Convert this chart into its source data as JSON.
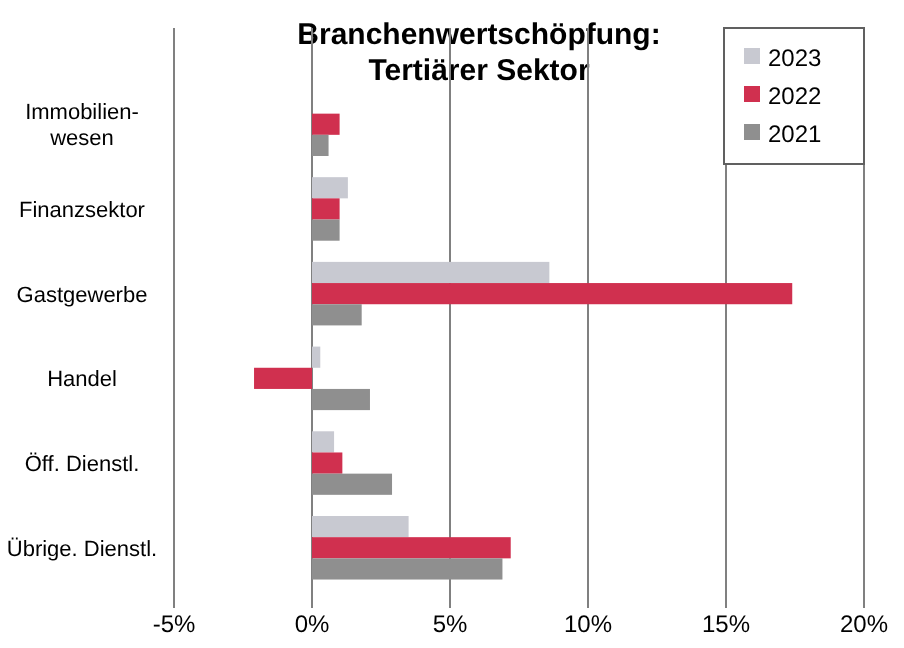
{
  "chart_data": {
    "type": "bar",
    "orientation": "horizontal",
    "title": "Branchenwertschöpfung:\nTertiärer Sektor",
    "categories": [
      "Immobilien-\nwesen",
      "Finanzsektor",
      "Gastgewerbe",
      "Handel",
      "Öff. Dienstl.",
      "Übrige. Dienstl."
    ],
    "series": [
      {
        "name": "2023",
        "color": "#c8c9d1",
        "values": [
          0,
          1.3,
          8.6,
          0.3,
          0.8,
          3.5
        ]
      },
      {
        "name": "2022",
        "color": "#d0304f",
        "values": [
          1.0,
          1.0,
          17.4,
          -2.1,
          1.1,
          7.2
        ]
      },
      {
        "name": "2021",
        "color": "#8f8f8f",
        "values": [
          0.6,
          1.0,
          1.8,
          2.1,
          2.9,
          6.9
        ]
      }
    ],
    "xlim": [
      -5,
      20
    ],
    "xticks": [
      {
        "value": -5,
        "label": "-5%"
      },
      {
        "value": 0,
        "label": "0%"
      },
      {
        "value": 5,
        "label": "5%"
      },
      {
        "value": 10,
        "label": "10%"
      },
      {
        "value": 15,
        "label": "15%"
      },
      {
        "value": 20,
        "label": "20%"
      }
    ],
    "grid": "x",
    "legend": "top right"
  }
}
